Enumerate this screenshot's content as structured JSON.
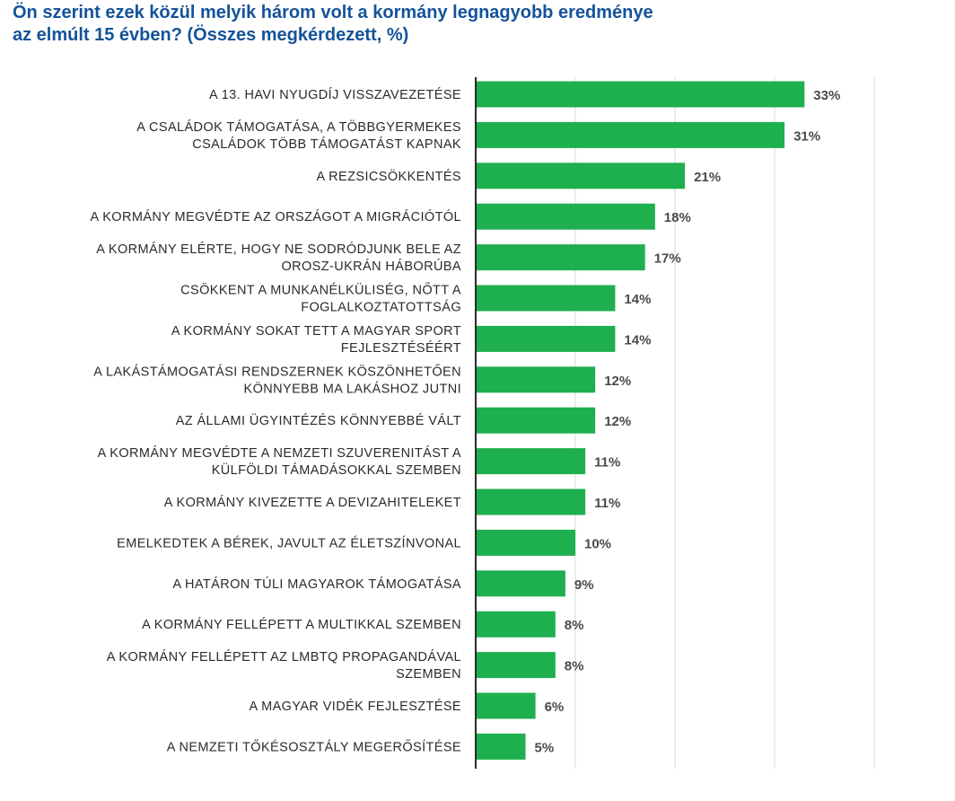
{
  "title_line1": "Ön szerint ezek közül melyik három volt a kormány legnagyobb eredménye",
  "title_line2": "az elmúlt 15 évben? (Összes megkérdezett, %)",
  "colors": {
    "bar": "#1eaf4e",
    "title": "#14539a",
    "axis": "#2b2b2b",
    "grid": "#d9d9d9"
  },
  "chart_data": {
    "type": "bar",
    "orientation": "horizontal",
    "title": "Ön szerint ezek közül melyik három volt a kormány legnagyobb eredménye az elmúlt 15 évben? (Összes megkérdezett, %)",
    "xlim": [
      0,
      40
    ],
    "grid": true,
    "value_suffix": "%",
    "categories": [
      [
        "A 13. HAVI NYUGDÍJ VISSZAVEZETÉSE"
      ],
      [
        "A CSALÁDOK TÁMOGATÁSA, A TÖBBGYERMEKES",
        "CSALÁDOK TÖBB TÁMOGATÁST KAPNAK"
      ],
      [
        "A REZSICSÖKKENTÉS"
      ],
      [
        "A KORMÁNY MEGVÉDTE AZ ORSZÁGOT A MIGRÁCIÓTÓL"
      ],
      [
        "A KORMÁNY ELÉRTE, HOGY NE SODRÓDJUNK BELE AZ",
        "OROSZ-UKRÁN HÁBORÚBA"
      ],
      [
        "CSÖKKENT A MUNKANÉLKÜLISÉG, NŐTT A",
        "FOGLALKOZTATOTTSÁG"
      ],
      [
        "A KORMÁNY SOKAT TETT A MAGYAR SPORT",
        "FEJLESZTÉSÉÉRT"
      ],
      [
        "A LAKÁSTÁMOGATÁSI RENDSZERNEK KÖSZÖNHETŐEN",
        "KÖNNYEBB MA LAKÁSHOZ JUTNI"
      ],
      [
        "AZ ÁLLAMI ÜGYINTÉZÉS KÖNNYEBBÉ VÁLT"
      ],
      [
        "A KORMÁNY MEGVÉDTE A NEMZETI SZUVERENITÁST A",
        "KÜLFÖLDI TÁMADÁSOKKAL SZEMBEN"
      ],
      [
        "A KORMÁNY KIVEZETTE A DEVIZAHITELEKET"
      ],
      [
        "EMELKEDTEK A BÉREK, JAVULT AZ ÉLETSZÍNVONAL"
      ],
      [
        "A HATÁRON TÚLI MAGYAROK TÁMOGATÁSA"
      ],
      [
        "A KORMÁNY FELLÉPETT A MULTIKKAL SZEMBEN"
      ],
      [
        "A KORMÁNY FELLÉPETT AZ LMBTQ PROPAGANDÁVAL",
        "SZEMBEN"
      ],
      [
        "A MAGYAR VIDÉK FEJLESZTÉSE"
      ],
      [
        "A NEMZETI TŐKÉSOSZTÁLY MEGERŐSÍTÉSE"
      ]
    ],
    "values": [
      33,
      31,
      21,
      18,
      17,
      14,
      14,
      12,
      12,
      11,
      11,
      10,
      9,
      8,
      8,
      6,
      5
    ]
  }
}
